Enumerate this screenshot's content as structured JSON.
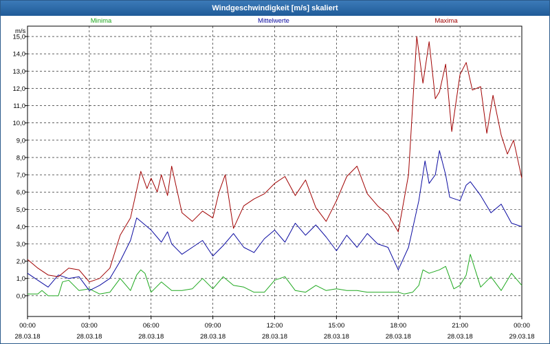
{
  "window": {
    "title": "Windgeschwindigkeit [m/s] skaliert"
  },
  "chart_data": {
    "type": "line",
    "title": "Windgeschwindigkeit [m/s] skaliert",
    "ylabel": "m/s",
    "ylim": [
      -1.2,
      15.6
    ],
    "yticks": [
      "0,0",
      "1,0",
      "2,0",
      "3,0",
      "4,0",
      "5,0",
      "6,0",
      "7,0",
      "8,0",
      "9,0",
      "10,0",
      "11,0",
      "12,0",
      "13,0",
      "14,0",
      "15,0"
    ],
    "xlim": [
      0,
      24
    ],
    "xticks": [
      {
        "time": "00:00",
        "date": "28.03.18"
      },
      {
        "time": "03:00",
        "date": "28.03.18"
      },
      {
        "time": "06:00",
        "date": "28.03.18"
      },
      {
        "time": "09:00",
        "date": "28.03.18"
      },
      {
        "time": "12:00",
        "date": "28.03.18"
      },
      {
        "time": "15:00",
        "date": "28.03.18"
      },
      {
        "time": "18:00",
        "date": "28.03.18"
      },
      {
        "time": "21:00",
        "date": "28.03.18"
      },
      {
        "time": "00:00",
        "date": "29.03.18"
      }
    ],
    "grid": true,
    "legend_position": "top",
    "series": [
      {
        "name": "Minima",
        "color": "#1ea81e",
        "x": [
          0,
          0.5,
          0.7,
          1,
          1.5,
          1.7,
          2,
          2.5,
          3,
          3.5,
          4,
          4.5,
          5,
          5.3,
          5.5,
          5.7,
          6,
          6.5,
          7,
          7.5,
          8,
          8.5,
          9,
          9.5,
          10,
          10.5,
          11,
          11.5,
          12,
          12.5,
          13,
          13.5,
          14,
          14.5,
          15,
          15.5,
          16,
          16.5,
          17,
          17.5,
          18,
          18.3,
          18.7,
          19,
          19.2,
          19.5,
          20,
          20.3,
          20.7,
          21,
          21.3,
          21.5,
          22,
          22.5,
          23,
          23.5,
          24
        ],
        "y": [
          0.1,
          0.1,
          0.3,
          0,
          0,
          0.8,
          0.9,
          0.3,
          0.4,
          0.1,
          0.2,
          1,
          0.3,
          1.2,
          1.5,
          1.3,
          0.2,
          0.8,
          0.3,
          0.3,
          0.4,
          1,
          0.4,
          1.1,
          0.6,
          0.5,
          0.2,
          0.2,
          0.9,
          1.1,
          0.3,
          0.2,
          0.6,
          0.3,
          0.4,
          0.3,
          0.3,
          0.2,
          0.2,
          0.2,
          0.2,
          0.1,
          0.2,
          0.6,
          1.5,
          1.3,
          1.5,
          1.7,
          0.4,
          0.6,
          1.2,
          2.4,
          0.5,
          1.1,
          0.3,
          1.3,
          0.6
        ]
      },
      {
        "name": "Mittelwerte",
        "color": "#0a0aa0",
        "x": [
          0,
          0.5,
          1,
          1.5,
          2,
          2.5,
          3,
          3.5,
          4,
          4.5,
          5,
          5.3,
          5.5,
          6,
          6.5,
          6.8,
          7,
          7.5,
          8,
          8.5,
          9,
          9.5,
          10,
          10.5,
          11,
          11.5,
          12,
          12.5,
          13,
          13.5,
          14,
          14.5,
          15,
          15.5,
          16,
          16.5,
          17,
          17.5,
          18,
          18.5,
          19,
          19.3,
          19.5,
          19.8,
          20,
          20.3,
          20.5,
          21,
          21.3,
          21.5,
          22,
          22.5,
          23,
          23.5,
          24
        ],
        "y": [
          1.3,
          0.9,
          0.5,
          1.2,
          1,
          1.1,
          0.3,
          0.6,
          1,
          2,
          3.2,
          4.5,
          4.3,
          3.8,
          3.1,
          3.7,
          3,
          2.4,
          2.8,
          3.2,
          2.3,
          2.9,
          3.6,
          2.8,
          2.5,
          3.3,
          3.8,
          3.1,
          4.2,
          3.5,
          4.1,
          3.4,
          2.6,
          3.5,
          2.8,
          3.6,
          3,
          2.8,
          1.5,
          2.8,
          5.5,
          7.8,
          6.5,
          7,
          8.4,
          7,
          5.7,
          5.5,
          6.4,
          6.6,
          5.8,
          4.8,
          5.3,
          4.2,
          4
        ]
      },
      {
        "name": "Maxima",
        "color": "#a00000",
        "x": [
          0,
          0.5,
          1,
          1.5,
          2,
          2.5,
          3,
          3.5,
          4,
          4.5,
          5,
          5.5,
          5.8,
          6,
          6.3,
          6.5,
          6.8,
          7,
          7.5,
          8,
          8.5,
          9,
          9.3,
          9.6,
          10,
          10.5,
          11,
          11.5,
          12,
          12.5,
          13,
          13.5,
          14,
          14.5,
          15,
          15.5,
          16,
          16.5,
          17,
          17.5,
          18,
          18.5,
          18.9,
          19.2,
          19.5,
          19.8,
          20,
          20.3,
          20.6,
          21,
          21.3,
          21.6,
          22,
          22.3,
          22.6,
          23,
          23.3,
          23.6,
          24
        ],
        "y": [
          2.1,
          1.6,
          1.2,
          1.1,
          1.6,
          1.5,
          0.8,
          1,
          1.6,
          3.5,
          4.5,
          7.2,
          6.2,
          6.8,
          6,
          7,
          5.8,
          7.5,
          4.8,
          4.3,
          4.9,
          4.5,
          6,
          7,
          3.9,
          5.2,
          5.6,
          5.9,
          6.5,
          6.9,
          5.8,
          6.7,
          5.1,
          4.3,
          5.5,
          6.9,
          7.5,
          5.9,
          5.2,
          4.7,
          3.7,
          7,
          15,
          12.3,
          14.7,
          11.4,
          11.8,
          13.4,
          9.5,
          12.8,
          13.5,
          11.9,
          12.1,
          9.4,
          11.6,
          9.3,
          8.2,
          9,
          6.8
        ]
      }
    ]
  }
}
